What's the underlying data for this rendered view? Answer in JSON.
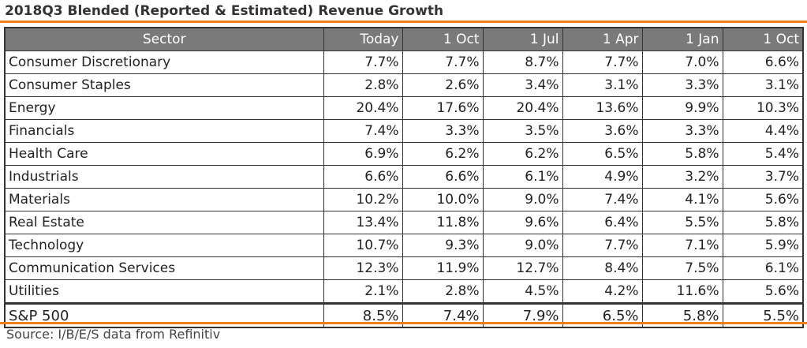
{
  "colors": {
    "accent": "#ee7f1b",
    "header_bg": "#7a7a7a"
  },
  "chart_data": {
    "type": "table",
    "title": "2018Q3 Blended (Reported & Estimated) Revenue Growth",
    "columns": [
      "Sector",
      "Today",
      "1 Oct",
      "1 Jul",
      "1 Apr",
      "1 Jan",
      "1 Oct"
    ],
    "rows": [
      {
        "sector": "Consumer Discretionary",
        "values": [
          "7.7%",
          "7.7%",
          "8.7%",
          "7.7%",
          "7.0%",
          "6.6%"
        ]
      },
      {
        "sector": "Consumer Staples",
        "values": [
          "2.8%",
          "2.6%",
          "3.4%",
          "3.1%",
          "3.3%",
          "3.1%"
        ]
      },
      {
        "sector": "Energy",
        "values": [
          "20.4%",
          "17.6%",
          "20.4%",
          "13.6%",
          "9.9%",
          "10.3%"
        ]
      },
      {
        "sector": "Financials",
        "values": [
          "7.4%",
          "3.3%",
          "3.5%",
          "3.6%",
          "3.3%",
          "4.4%"
        ]
      },
      {
        "sector": "Health Care",
        "values": [
          "6.9%",
          "6.2%",
          "6.2%",
          "6.5%",
          "5.8%",
          "5.4%"
        ]
      },
      {
        "sector": "Industrials",
        "values": [
          "6.6%",
          "6.6%",
          "6.1%",
          "4.9%",
          "3.2%",
          "3.7%"
        ]
      },
      {
        "sector": "Materials",
        "values": [
          "10.2%",
          "10.0%",
          "9.0%",
          "7.4%",
          "4.1%",
          "5.6%"
        ]
      },
      {
        "sector": "Real Estate",
        "values": [
          "13.4%",
          "11.8%",
          "9.6%",
          "6.4%",
          "5.5%",
          "5.8%"
        ]
      },
      {
        "sector": "Technology",
        "values": [
          "10.7%",
          "9.3%",
          "9.0%",
          "7.7%",
          "7.1%",
          "5.9%"
        ]
      },
      {
        "sector": "Communication Services",
        "values": [
          "12.3%",
          "11.9%",
          "12.7%",
          "8.4%",
          "7.5%",
          "6.1%"
        ]
      },
      {
        "sector": "Utilities",
        "values": [
          "2.1%",
          "2.8%",
          "4.5%",
          "4.2%",
          "11.6%",
          "5.6%"
        ]
      },
      {
        "sector": "S&P 500",
        "values": [
          "8.5%",
          "7.4%",
          "7.9%",
          "6.5%",
          "5.8%",
          "5.5%"
        ]
      }
    ],
    "source": "Source: I/B/E/S data from Refinitiv"
  }
}
